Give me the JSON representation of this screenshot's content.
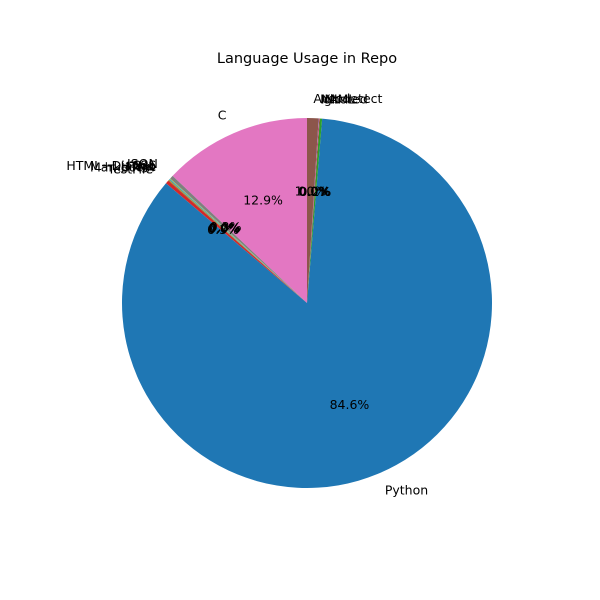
{
  "chart_data": {
    "type": "pie",
    "title": "Language Usage in Repo",
    "start_angle_deg": 90,
    "direction": "counterclockwise",
    "slices": [
      {
        "label": "C",
        "value": 12.9,
        "pct_label": "12.9%",
        "color": "#e377c2"
      },
      {
        "label": "JSON",
        "value": 0.3,
        "pct_label": "0.3%",
        "color": "#7f7f7f"
      },
      {
        "label": "CSS",
        "value": 0.05,
        "pct_label": "0.0%",
        "color": "#bcbd22"
      },
      {
        "label": "HTML+Django",
        "value": 0.05,
        "pct_label": "0.0%",
        "color": "#17becf"
      },
      {
        "label": "HTML",
        "value": 0.05,
        "pct_label": "0.0%",
        "color": "#1f77b4"
      },
      {
        "label": "Text",
        "value": 0.05,
        "pct_label": "0.0%",
        "color": "#ff7f0e"
      },
      {
        "label": "Markdown",
        "value": 0.05,
        "pct_label": "0.0%",
        "color": "#2ca02c"
      },
      {
        "label": "TestFile",
        "value": 0.3,
        "pct_label": "0.3%",
        "color": "#d62728"
      },
      {
        "label": "Python",
        "value": 84.6,
        "pct_label": "84.6%",
        "color": "#1f77b4"
      },
      {
        "label": "YAML",
        "value": 0.2,
        "pct_label": "0.2%",
        "color": "#2ca02c"
      },
      {
        "label": "INI",
        "value": 0.05,
        "pct_label": "0.0%",
        "color": "#d62728"
      },
      {
        "label": "Ignored",
        "value": 0.05,
        "pct_label": "0.0%",
        "color": "#9467bd"
      },
      {
        "label": "Autodetect",
        "value": 1.0,
        "pct_label": "1.0%",
        "color": "#8c564b"
      }
    ]
  }
}
